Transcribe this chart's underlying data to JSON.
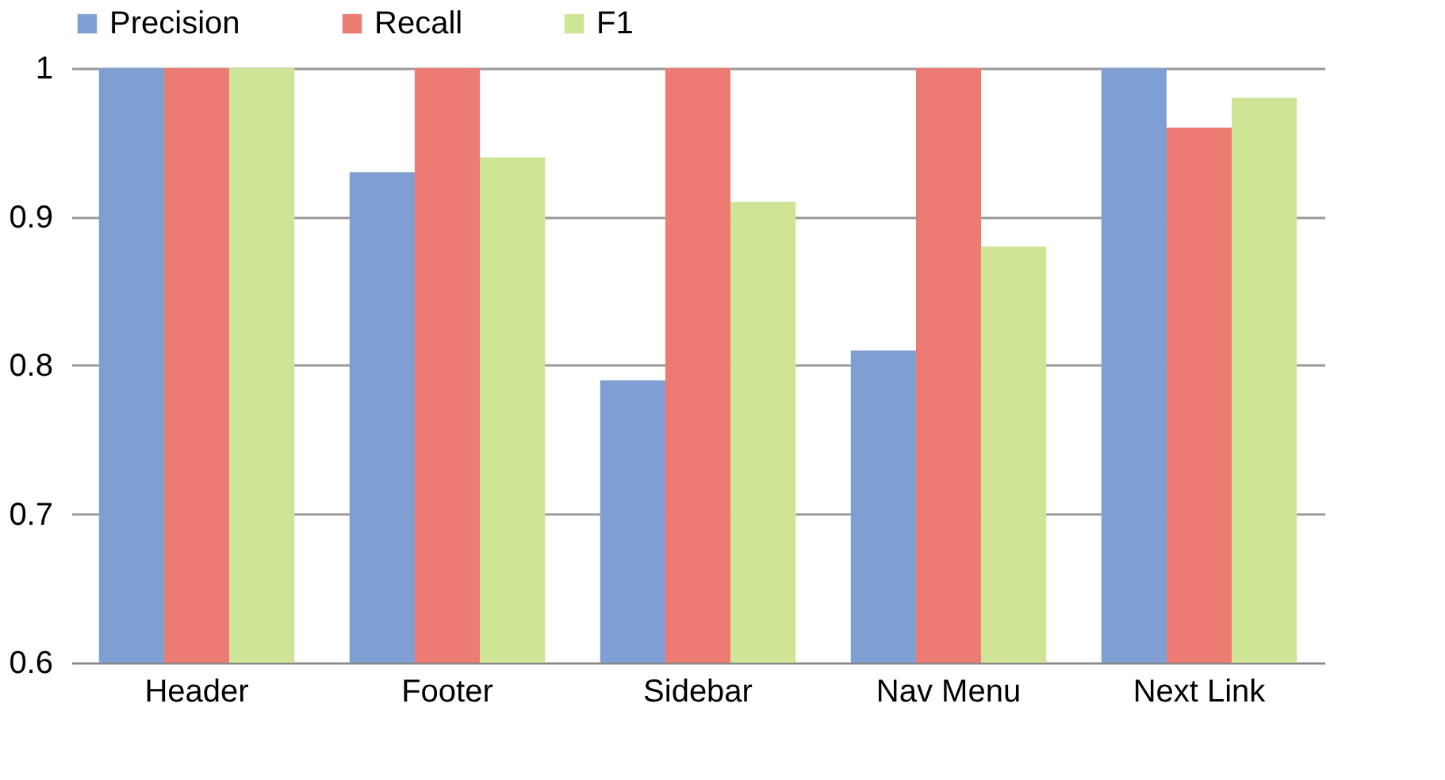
{
  "chart_data": {
    "type": "bar",
    "categories": [
      "Header",
      "Footer",
      "Sidebar",
      "Nav Menu",
      "Next Link"
    ],
    "series": [
      {
        "name": "Precision",
        "color": "#7f9fd3",
        "values": [
          1,
          0.93,
          0.79,
          0.81,
          1
        ]
      },
      {
        "name": "Recall",
        "color": "#ec7b74",
        "values": [
          1,
          1,
          1,
          1,
          0.96
        ]
      },
      {
        "name": "F1",
        "color": "#cde594",
        "values": [
          1,
          0.94,
          0.91,
          0.88,
          0.98
        ]
      }
    ],
    "ylim": [
      0.6,
      1
    ],
    "yticks": [
      0.6,
      0.7,
      0.8,
      0.9,
      1
    ],
    "grid": "y",
    "legend": "top"
  }
}
